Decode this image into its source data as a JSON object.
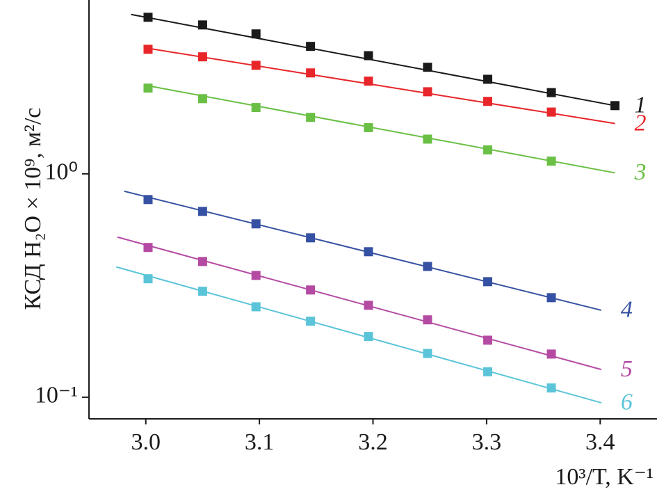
{
  "chart_data": {
    "type": "scatter",
    "log_y": true,
    "x_label": "10³/T, K⁻¹",
    "y_label": "КСД H₂O × 10⁹, м²/с",
    "xlim": [
      2.95,
      3.45
    ],
    "xticks": [
      {
        "value": 3.0,
        "label": "3.0"
      },
      3.1,
      3.2,
      3.3,
      3.4
    ],
    "ylim": [
      0.08,
      6
    ],
    "yticks": [
      {
        "value": 1,
        "label": "10⁰"
      },
      {
        "value": 0.1,
        "label": "10⁻¹"
      }
    ],
    "series": [
      {
        "name": "1",
        "color": "#1a1a1a",
        "x": [
          3.002,
          3.05,
          3.097,
          3.145,
          3.196,
          3.248,
          3.301,
          3.357,
          3.413
        ],
        "values": [
          5.02,
          4.64,
          4.23,
          3.72,
          3.38,
          3.0,
          2.65,
          2.31,
          2.02
        ],
        "fit": {
          "x": [
            2.987,
            3.413
          ],
          "values": [
            5.17,
            2.02
          ]
        }
      },
      {
        "name": "2",
        "color": "#e8262a",
        "x": [
          3.002,
          3.05,
          3.097,
          3.145,
          3.196,
          3.248,
          3.301,
          3.357
        ],
        "values": [
          3.61,
          3.34,
          3.06,
          2.83,
          2.6,
          2.33,
          2.11,
          1.89
        ],
        "fit": {
          "x": [
            3.0,
            3.413
          ],
          "values": [
            3.66,
            1.68
          ]
        }
      },
      {
        "name": "3",
        "color": "#6abf45",
        "x": [
          3.002,
          3.05,
          3.097,
          3.145,
          3.196,
          3.248,
          3.301,
          3.357
        ],
        "values": [
          2.42,
          2.17,
          1.98,
          1.79,
          1.61,
          1.43,
          1.28,
          1.14
        ],
        "fit": {
          "x": [
            3.0,
            3.413
          ],
          "values": [
            2.49,
            1.01
          ]
        }
      },
      {
        "name": "4",
        "color": "#3651a3",
        "x": [
          3.002,
          3.05,
          3.097,
          3.145,
          3.196,
          3.248,
          3.301,
          3.357
        ],
        "values": [
          0.767,
          0.679,
          0.597,
          0.517,
          0.448,
          0.385,
          0.329,
          0.279
        ],
        "fit": {
          "x": [
            2.981,
            3.401
          ],
          "values": [
            0.836,
            0.245
          ]
        }
      },
      {
        "name": "5",
        "color": "#b54aa3",
        "x": [
          3.002,
          3.05,
          3.097,
          3.145,
          3.196,
          3.248,
          3.301,
          3.357
        ],
        "values": [
          0.468,
          0.405,
          0.351,
          0.302,
          0.258,
          0.222,
          0.18,
          0.156
        ],
        "fit": {
          "x": [
            2.975,
            3.401
          ],
          "values": [
            0.521,
            0.133
          ]
        }
      },
      {
        "name": "6",
        "color": "#5bc4d8",
        "x": [
          3.002,
          3.05,
          3.097,
          3.145,
          3.196,
          3.248,
          3.301,
          3.357
        ],
        "values": [
          0.339,
          0.298,
          0.254,
          0.219,
          0.187,
          0.157,
          0.13,
          0.11
        ],
        "fit": {
          "x": [
            2.974,
            3.401
          ],
          "values": [
            0.383,
            0.0944
          ]
        }
      }
    ]
  }
}
